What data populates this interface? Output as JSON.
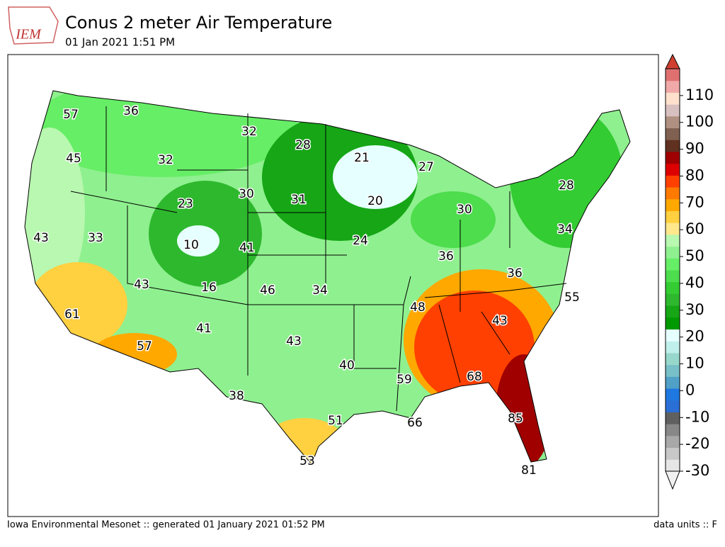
{
  "header": {
    "logo_text": "IEM",
    "title": "Conus 2 meter Air Temperature",
    "subtitle": "01 Jan 2021 1:51 PM"
  },
  "stations": [
    57,
    36,
    32,
    28,
    21,
    27,
    45,
    32,
    30,
    31,
    20,
    28,
    23,
    30,
    43,
    33,
    10,
    41,
    24,
    34,
    36,
    36,
    43,
    16,
    46,
    34,
    55,
    48,
    61,
    43,
    41,
    43,
    57,
    40,
    59,
    68,
    38,
    51,
    66,
    85,
    53,
    81
  ],
  "colorbar": {
    "ticks": [
      -30,
      -20,
      -10,
      0,
      10,
      20,
      30,
      40,
      50,
      60,
      70,
      80,
      90,
      100,
      110
    ],
    "levels_min": -30,
    "levels_max": 120,
    "colors": [
      "#e6e6e6",
      "#c8c8c8",
      "#a8a8a8",
      "#888888",
      "#606060",
      "#2a6fd6",
      "#1e78e0",
      "#50a0c8",
      "#78c0c8",
      "#98d8cc",
      "#c0f0ec",
      "#e6ffff",
      "#009900",
      "#16a616",
      "#2eb82e",
      "#33cc33",
      "#4ddd4d",
      "#66ee66",
      "#8ff08f",
      "#b8f8b0",
      "#ffe88c",
      "#ffd040",
      "#ffa800",
      "#ff7a00",
      "#ff4000",
      "#dd0000",
      "#a00000",
      "#603020",
      "#806050",
      "#b09080",
      "#d8c0c0",
      "#ffe0cc",
      "#f0a8a8",
      "#e07070"
    ],
    "under_color": "#f0f0f0",
    "over_color": "#d04030"
  },
  "footer": {
    "left": "Iowa Environmental Mesonet :: generated 01 January 2021 01:52 PM",
    "right": "data units :: F"
  }
}
